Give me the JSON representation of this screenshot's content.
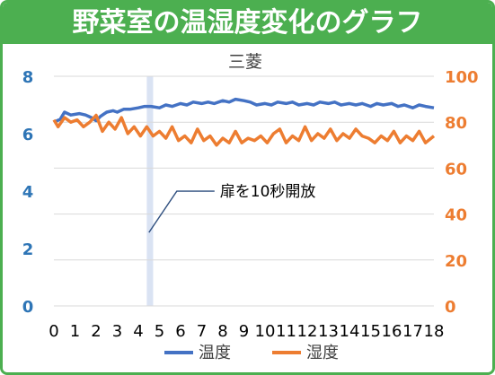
{
  "banner": {
    "title": "野菜室の温湿度変化のグラフ"
  },
  "colors": {
    "banner": "#4caf50",
    "temp": "#4472c4",
    "humid": "#ed7d31",
    "left_axis": "#2e75b6",
    "right_axis": "#ed7d31",
    "highlight": "#dae3f3",
    "grid": "#d9d9d9"
  },
  "chart_data": {
    "type": "line",
    "title": "三菱",
    "x_ticks": [
      "0",
      "1",
      "2",
      "3",
      "4",
      "5",
      "6",
      "7",
      "8",
      "9",
      "10",
      "11",
      "12",
      "13",
      "14",
      "15",
      "16",
      "17",
      "18"
    ],
    "xlim": [
      0,
      18
    ],
    "y_left": {
      "ylim": [
        0,
        8
      ],
      "ticks": [
        "0",
        "2",
        "4",
        "6",
        "8"
      ]
    },
    "y_right": {
      "ylim": [
        0,
        100
      ],
      "ticks": [
        "0",
        "20",
        "40",
        "60",
        "80",
        "100"
      ]
    },
    "grid": true,
    "legend_placement": "bottom",
    "highlight_band": {
      "x_start": 4.4,
      "x_end": 4.7
    },
    "annotation": {
      "text": "扉を10秒開放",
      "x": 4.5,
      "y_right": 32
    },
    "series": [
      {
        "name": "温度",
        "axis": "left",
        "points": [
          [
            0,
            6.4
          ],
          [
            0.3,
            6.5
          ],
          [
            0.5,
            6.75
          ],
          [
            0.8,
            6.65
          ],
          [
            1.2,
            6.7
          ],
          [
            1.5,
            6.65
          ],
          [
            1.8,
            6.55
          ],
          [
            2.0,
            6.45
          ],
          [
            2.2,
            6.6
          ],
          [
            2.5,
            6.75
          ],
          [
            2.8,
            6.8
          ],
          [
            3.0,
            6.75
          ],
          [
            3.3,
            6.85
          ],
          [
            3.6,
            6.85
          ],
          [
            4.0,
            6.9
          ],
          [
            4.3,
            6.95
          ],
          [
            4.6,
            6.95
          ],
          [
            5.0,
            6.9
          ],
          [
            5.3,
            7.0
          ],
          [
            5.6,
            6.95
          ],
          [
            6.0,
            7.05
          ],
          [
            6.3,
            7.0
          ],
          [
            6.6,
            7.1
          ],
          [
            7.0,
            7.05
          ],
          [
            7.3,
            7.1
          ],
          [
            7.6,
            7.05
          ],
          [
            8.0,
            7.15
          ],
          [
            8.3,
            7.1
          ],
          [
            8.6,
            7.2
          ],
          [
            9.0,
            7.15
          ],
          [
            9.3,
            7.1
          ],
          [
            9.6,
            7.0
          ],
          [
            10.0,
            7.05
          ],
          [
            10.3,
            7.0
          ],
          [
            10.6,
            7.1
          ],
          [
            11.0,
            7.05
          ],
          [
            11.3,
            7.1
          ],
          [
            11.6,
            7.0
          ],
          [
            12.0,
            7.05
          ],
          [
            12.3,
            7.0
          ],
          [
            12.6,
            7.1
          ],
          [
            13.0,
            7.05
          ],
          [
            13.3,
            7.1
          ],
          [
            13.6,
            7.0
          ],
          [
            14.0,
            7.05
          ],
          [
            14.3,
            7.0
          ],
          [
            14.6,
            7.05
          ],
          [
            15.0,
            6.95
          ],
          [
            15.3,
            7.05
          ],
          [
            15.6,
            7.0
          ],
          [
            16.0,
            7.05
          ],
          [
            16.3,
            6.95
          ],
          [
            16.6,
            7.0
          ],
          [
            17.0,
            6.9
          ],
          [
            17.3,
            7.0
          ],
          [
            17.6,
            6.95
          ],
          [
            18.0,
            6.9
          ]
        ]
      },
      {
        "name": "湿度",
        "axis": "right",
        "points": [
          [
            0,
            81
          ],
          [
            0.2,
            78
          ],
          [
            0.5,
            82
          ],
          [
            0.8,
            80
          ],
          [
            1.1,
            81
          ],
          [
            1.4,
            78
          ],
          [
            1.7,
            80
          ],
          [
            2.0,
            83
          ],
          [
            2.3,
            76
          ],
          [
            2.6,
            80
          ],
          [
            2.9,
            77
          ],
          [
            3.2,
            82
          ],
          [
            3.5,
            75
          ],
          [
            3.8,
            78
          ],
          [
            4.1,
            74
          ],
          [
            4.4,
            78
          ],
          [
            4.7,
            74
          ],
          [
            5.0,
            76
          ],
          [
            5.3,
            73
          ],
          [
            5.6,
            78
          ],
          [
            5.9,
            72
          ],
          [
            6.2,
            74
          ],
          [
            6.5,
            71
          ],
          [
            6.8,
            77
          ],
          [
            7.1,
            72
          ],
          [
            7.4,
            74
          ],
          [
            7.7,
            70
          ],
          [
            8.0,
            73
          ],
          [
            8.3,
            71
          ],
          [
            8.6,
            76
          ],
          [
            8.9,
            71
          ],
          [
            9.2,
            73
          ],
          [
            9.5,
            72
          ],
          [
            9.8,
            74
          ],
          [
            10.1,
            71
          ],
          [
            10.4,
            75
          ],
          [
            10.7,
            77
          ],
          [
            11.0,
            71
          ],
          [
            11.3,
            74
          ],
          [
            11.6,
            72
          ],
          [
            11.9,
            78
          ],
          [
            12.2,
            72
          ],
          [
            12.5,
            75
          ],
          [
            12.8,
            73
          ],
          [
            13.1,
            77
          ],
          [
            13.4,
            72
          ],
          [
            13.7,
            75
          ],
          [
            14.0,
            73
          ],
          [
            14.3,
            77
          ],
          [
            14.6,
            74
          ],
          [
            14.9,
            73
          ],
          [
            15.2,
            71
          ],
          [
            15.5,
            74
          ],
          [
            15.8,
            72
          ],
          [
            16.1,
            76
          ],
          [
            16.4,
            71
          ],
          [
            16.7,
            74
          ],
          [
            17.0,
            72
          ],
          [
            17.3,
            76
          ],
          [
            17.6,
            71
          ],
          [
            18.0,
            74
          ]
        ]
      }
    ]
  }
}
